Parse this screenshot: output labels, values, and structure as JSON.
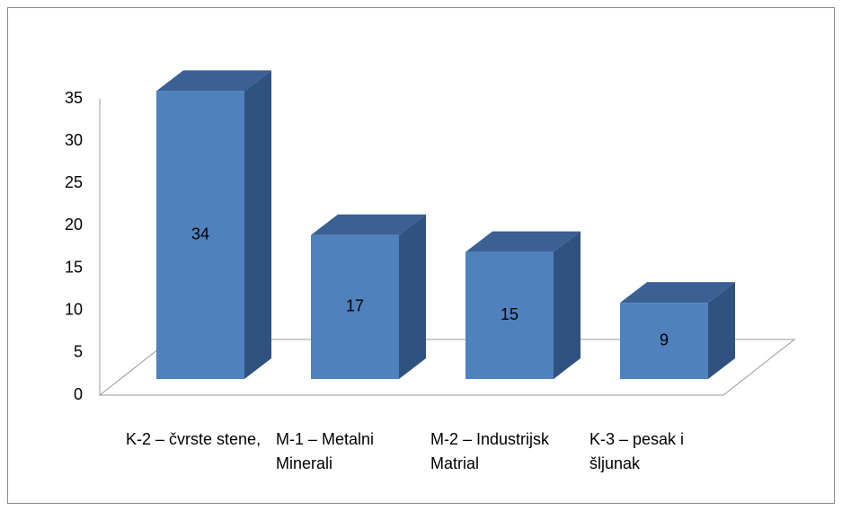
{
  "chart_data": {
    "type": "bar3d",
    "categories": [
      "K-2 – čvrste stene,",
      "M-1 – Metalni Minerali",
      "M-2 – Industrijsk Matrial",
      "K-3 – pesak i šljunak"
    ],
    "values": [
      34,
      17,
      15,
      9
    ],
    "color": "#4f81bd",
    "ylim": [
      0,
      35
    ],
    "yticks": [
      0,
      5,
      10,
      15,
      20,
      25,
      30,
      35
    ]
  }
}
